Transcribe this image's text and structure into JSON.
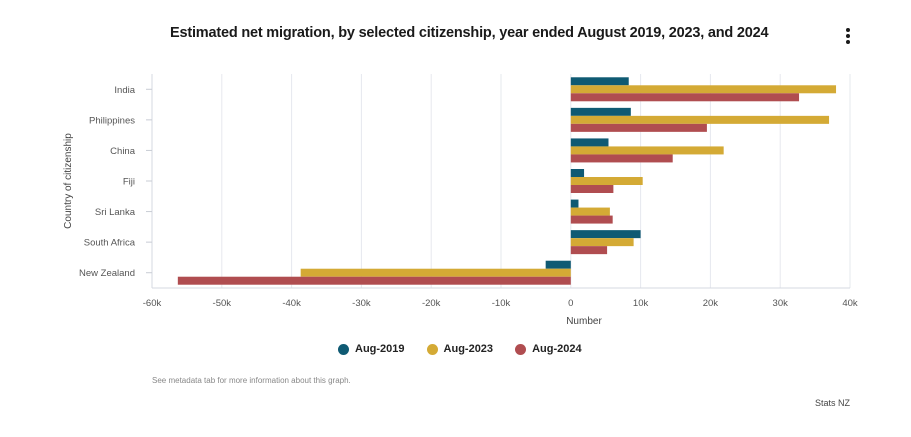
{
  "header": {
    "title": "Estimated net migration, by selected citizenship, year ended August 2019, 2023, and 2024",
    "menu_icon": "vertical-ellipsis-icon"
  },
  "chart_data": {
    "type": "bar",
    "orientation": "horizontal",
    "title": "Estimated net migration, by selected citizenship, year ended August 2019, 2023, and 2024",
    "xlabel": "Number",
    "ylabel": "Country of citizenship",
    "xlim": [
      -60000,
      40000
    ],
    "xticks": [
      -60000,
      -50000,
      -40000,
      -30000,
      -20000,
      -10000,
      0,
      10000,
      20000,
      30000,
      40000
    ],
    "xtick_labels": [
      "-60k",
      "-50k",
      "-40k",
      "-30k",
      "-20k",
      "-10k",
      "0",
      "10k",
      "20k",
      "30k",
      "40k"
    ],
    "grid": true,
    "legend_position": "bottom-center",
    "categories": [
      "India",
      "Philippines",
      "China",
      "Fiji",
      "Sri Lanka",
      "South Africa",
      "New Zealand"
    ],
    "series": [
      {
        "name": "Aug-2019",
        "color": "#0f5a73",
        "values": [
          8300,
          8600,
          5400,
          1900,
          1100,
          10000,
          -3600
        ]
      },
      {
        "name": "Aug-2023",
        "color": "#d4aa35",
        "values": [
          38000,
          37000,
          21900,
          10300,
          5600,
          9000,
          -38700
        ]
      },
      {
        "name": "Aug-2024",
        "color": "#b04d50",
        "values": [
          32700,
          19500,
          14600,
          6100,
          6000,
          5200,
          -56300
        ]
      }
    ]
  },
  "footer": {
    "note": "See metadata tab for more information about this graph.",
    "source": "Stats NZ"
  }
}
